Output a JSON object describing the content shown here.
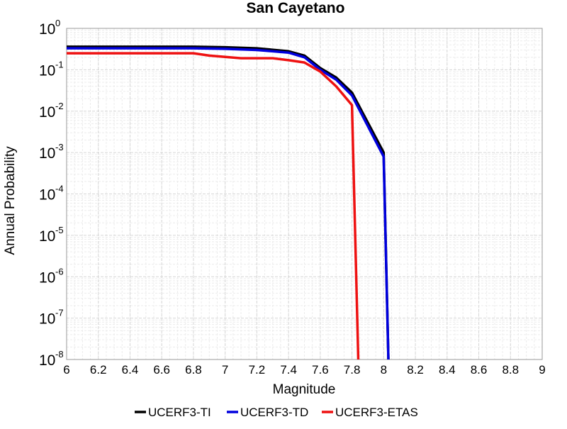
{
  "chart_data": {
    "type": "line",
    "title": "San Cayetano",
    "xlabel": "Magnitude",
    "ylabel": "Annual Probability",
    "xlim": [
      6,
      9
    ],
    "ylim": [
      1e-08,
      1
    ],
    "yscale": "log",
    "grid": true,
    "legend_position": "bottom",
    "x_ticks": [
      "6",
      "6.2",
      "6.4",
      "6.6",
      "6.8",
      "7",
      "7.2",
      "7.4",
      "7.6",
      "7.8",
      "8",
      "8.2",
      "8.4",
      "8.6",
      "8.8",
      "9"
    ],
    "y_ticks": [
      {
        "base": "10",
        "exp": "0"
      },
      {
        "base": "10",
        "exp": "-1"
      },
      {
        "base": "10",
        "exp": "-2"
      },
      {
        "base": "10",
        "exp": "-3"
      },
      {
        "base": "10",
        "exp": "-4"
      },
      {
        "base": "10",
        "exp": "-5"
      },
      {
        "base": "10",
        "exp": "-6"
      },
      {
        "base": "10",
        "exp": "-7"
      },
      {
        "base": "10",
        "exp": "-8"
      }
    ],
    "series": [
      {
        "name": "UCERF3-TI",
        "color": "#000000",
        "x": [
          6.0,
          6.8,
          7.0,
          7.2,
          7.4,
          7.5,
          7.6,
          7.7,
          7.8,
          8.0,
          8.03
        ],
        "y": [
          0.36,
          0.36,
          0.35,
          0.33,
          0.28,
          0.22,
          0.11,
          0.065,
          0.028,
          0.001,
          1e-09
        ]
      },
      {
        "name": "UCERF3-TD",
        "color": "#0000dd",
        "x": [
          6.0,
          6.8,
          7.0,
          7.2,
          7.4,
          7.5,
          7.6,
          7.7,
          7.8,
          8.0,
          8.03
        ],
        "y": [
          0.33,
          0.33,
          0.32,
          0.3,
          0.26,
          0.2,
          0.1,
          0.058,
          0.024,
          0.0008,
          1e-09
        ]
      },
      {
        "name": "UCERF3-ETAS",
        "color": "#ee1111",
        "x": [
          6.0,
          6.8,
          6.9,
          7.1,
          7.3,
          7.4,
          7.5,
          7.6,
          7.7,
          7.8,
          7.84
        ],
        "y": [
          0.25,
          0.25,
          0.22,
          0.19,
          0.19,
          0.17,
          0.15,
          0.09,
          0.04,
          0.014,
          1e-09
        ]
      }
    ]
  }
}
